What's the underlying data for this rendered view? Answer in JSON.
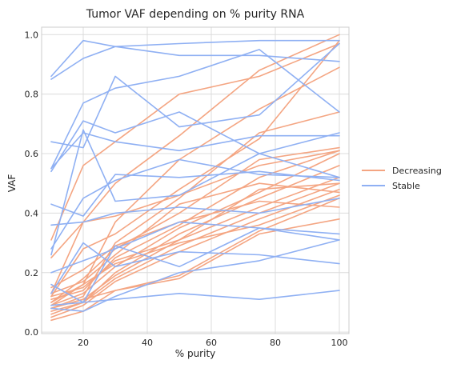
{
  "chart_data": {
    "type": "line",
    "title": "Tumor VAF depending on % purity RNA",
    "xlabel": "% purity",
    "ylabel": "VAF",
    "xlim": [
      7,
      103
    ],
    "ylim": [
      -0.005,
      1.025
    ],
    "xticks": [
      20,
      40,
      60,
      80,
      100
    ],
    "yticks": [
      0.0,
      0.2,
      0.4,
      0.6,
      0.8,
      1.0
    ],
    "x": [
      10,
      20,
      30,
      50,
      75,
      100
    ],
    "grid": true,
    "legend": "right",
    "series": [
      {
        "name": "Decreasing",
        "color": "#f4a582",
        "values": [
          0.31,
          0.56,
          0.64,
          0.8,
          0.86,
          0.97
        ]
      },
      {
        "name": "",
        "color": "#f4a582",
        "values": [
          0.25,
          0.37,
          0.5,
          0.66,
          0.88,
          1.0
        ]
      },
      {
        "name": "",
        "color": "#f4a582",
        "values": [
          0.09,
          0.16,
          0.37,
          0.58,
          0.75,
          0.89
        ]
      },
      {
        "name": "",
        "color": "#f4a582",
        "values": [
          0.08,
          0.12,
          0.3,
          0.45,
          0.67,
          0.74
        ]
      },
      {
        "name": "",
        "color": "#f4a582",
        "values": [
          0.12,
          0.28,
          0.33,
          0.48,
          0.65,
          0.98
        ]
      },
      {
        "name": "",
        "color": "#f4a582",
        "values": [
          0.1,
          0.18,
          0.28,
          0.4,
          0.58,
          0.62
        ]
      },
      {
        "name": "",
        "color": "#f4a582",
        "values": [
          0.11,
          0.14,
          0.25,
          0.36,
          0.52,
          0.61
        ]
      },
      {
        "name": "",
        "color": "#f4a582",
        "values": [
          0.09,
          0.13,
          0.22,
          0.35,
          0.47,
          0.6
        ]
      },
      {
        "name": "",
        "color": "#f4a582",
        "values": [
          0.07,
          0.1,
          0.2,
          0.33,
          0.45,
          0.56
        ]
      },
      {
        "name": "",
        "color": "#f4a582",
        "values": [
          0.08,
          0.11,
          0.19,
          0.31,
          0.42,
          0.52
        ]
      },
      {
        "name": "",
        "color": "#f4a582",
        "values": [
          0.06,
          0.1,
          0.18,
          0.29,
          0.4,
          0.5
        ]
      },
      {
        "name": "",
        "color": "#f4a582",
        "values": [
          0.05,
          0.09,
          0.17,
          0.27,
          0.38,
          0.48
        ]
      },
      {
        "name": "",
        "color": "#f4a582",
        "values": [
          0.04,
          0.07,
          0.14,
          0.19,
          0.34,
          0.45
        ]
      },
      {
        "name": "",
        "color": "#f4a582",
        "values": [
          0.12,
          0.15,
          0.24,
          0.31,
          0.48,
          0.5
        ]
      },
      {
        "name": "",
        "color": "#f4a582",
        "values": [
          0.13,
          0.17,
          0.26,
          0.43,
          0.5,
          0.47
        ]
      },
      {
        "name": "",
        "color": "#f4a582",
        "values": [
          0.15,
          0.21,
          0.29,
          0.37,
          0.44,
          0.42
        ]
      },
      {
        "name": "",
        "color": "#f4a582",
        "values": [
          0.1,
          0.16,
          0.23,
          0.3,
          0.36,
          0.46
        ]
      },
      {
        "name": "",
        "color": "#f4a582",
        "values": [
          0.08,
          0.11,
          0.14,
          0.18,
          0.33,
          0.38
        ]
      },
      {
        "name": "",
        "color": "#f4a582",
        "values": [
          0.13,
          0.37,
          0.39,
          0.46,
          0.56,
          0.61
        ]
      },
      {
        "name": "Stable",
        "color": "#8fb0f3",
        "values": [
          0.86,
          0.98,
          0.96,
          0.97,
          0.98,
          0.98
        ]
      },
      {
        "name": "",
        "color": "#8fb0f3",
        "values": [
          0.85,
          0.92,
          0.96,
          0.93,
          0.93,
          0.91
        ]
      },
      {
        "name": "",
        "color": "#8fb0f3",
        "values": [
          0.55,
          0.77,
          0.82,
          0.86,
          0.95,
          0.74
        ]
      },
      {
        "name": "",
        "color": "#8fb0f3",
        "values": [
          0.54,
          0.71,
          0.67,
          0.74,
          0.6,
          0.52
        ]
      },
      {
        "name": "",
        "color": "#8fb0f3",
        "values": [
          0.64,
          0.62,
          0.86,
          0.69,
          0.73,
          0.97
        ]
      },
      {
        "name": "",
        "color": "#8fb0f3",
        "values": [
          0.55,
          0.67,
          0.64,
          0.61,
          0.66,
          0.66
        ]
      },
      {
        "name": "",
        "color": "#8fb0f3",
        "values": [
          0.43,
          0.39,
          0.53,
          0.52,
          0.54,
          0.51
        ]
      },
      {
        "name": "",
        "color": "#8fb0f3",
        "values": [
          0.28,
          0.45,
          0.51,
          0.58,
          0.53,
          0.52
        ]
      },
      {
        "name": "",
        "color": "#8fb0f3",
        "values": [
          0.26,
          0.68,
          0.44,
          0.46,
          0.6,
          0.67
        ]
      },
      {
        "name": "",
        "color": "#8fb0f3",
        "values": [
          0.36,
          0.37,
          0.4,
          0.42,
          0.4,
          0.45
        ]
      },
      {
        "name": "",
        "color": "#8fb0f3",
        "values": [
          0.2,
          0.24,
          0.28,
          0.37,
          0.35,
          0.33
        ]
      },
      {
        "name": "",
        "color": "#8fb0f3",
        "values": [
          0.16,
          0.1,
          0.29,
          0.22,
          0.35,
          0.31
        ]
      },
      {
        "name": "",
        "color": "#8fb0f3",
        "values": [
          0.13,
          0.3,
          0.22,
          0.27,
          0.26,
          0.23
        ]
      },
      {
        "name": "",
        "color": "#8fb0f3",
        "values": [
          0.08,
          0.07,
          0.12,
          0.2,
          0.24,
          0.31
        ]
      },
      {
        "name": "",
        "color": "#8fb0f3",
        "values": [
          0.09,
          0.1,
          0.11,
          0.13,
          0.11,
          0.14
        ]
      }
    ]
  }
}
